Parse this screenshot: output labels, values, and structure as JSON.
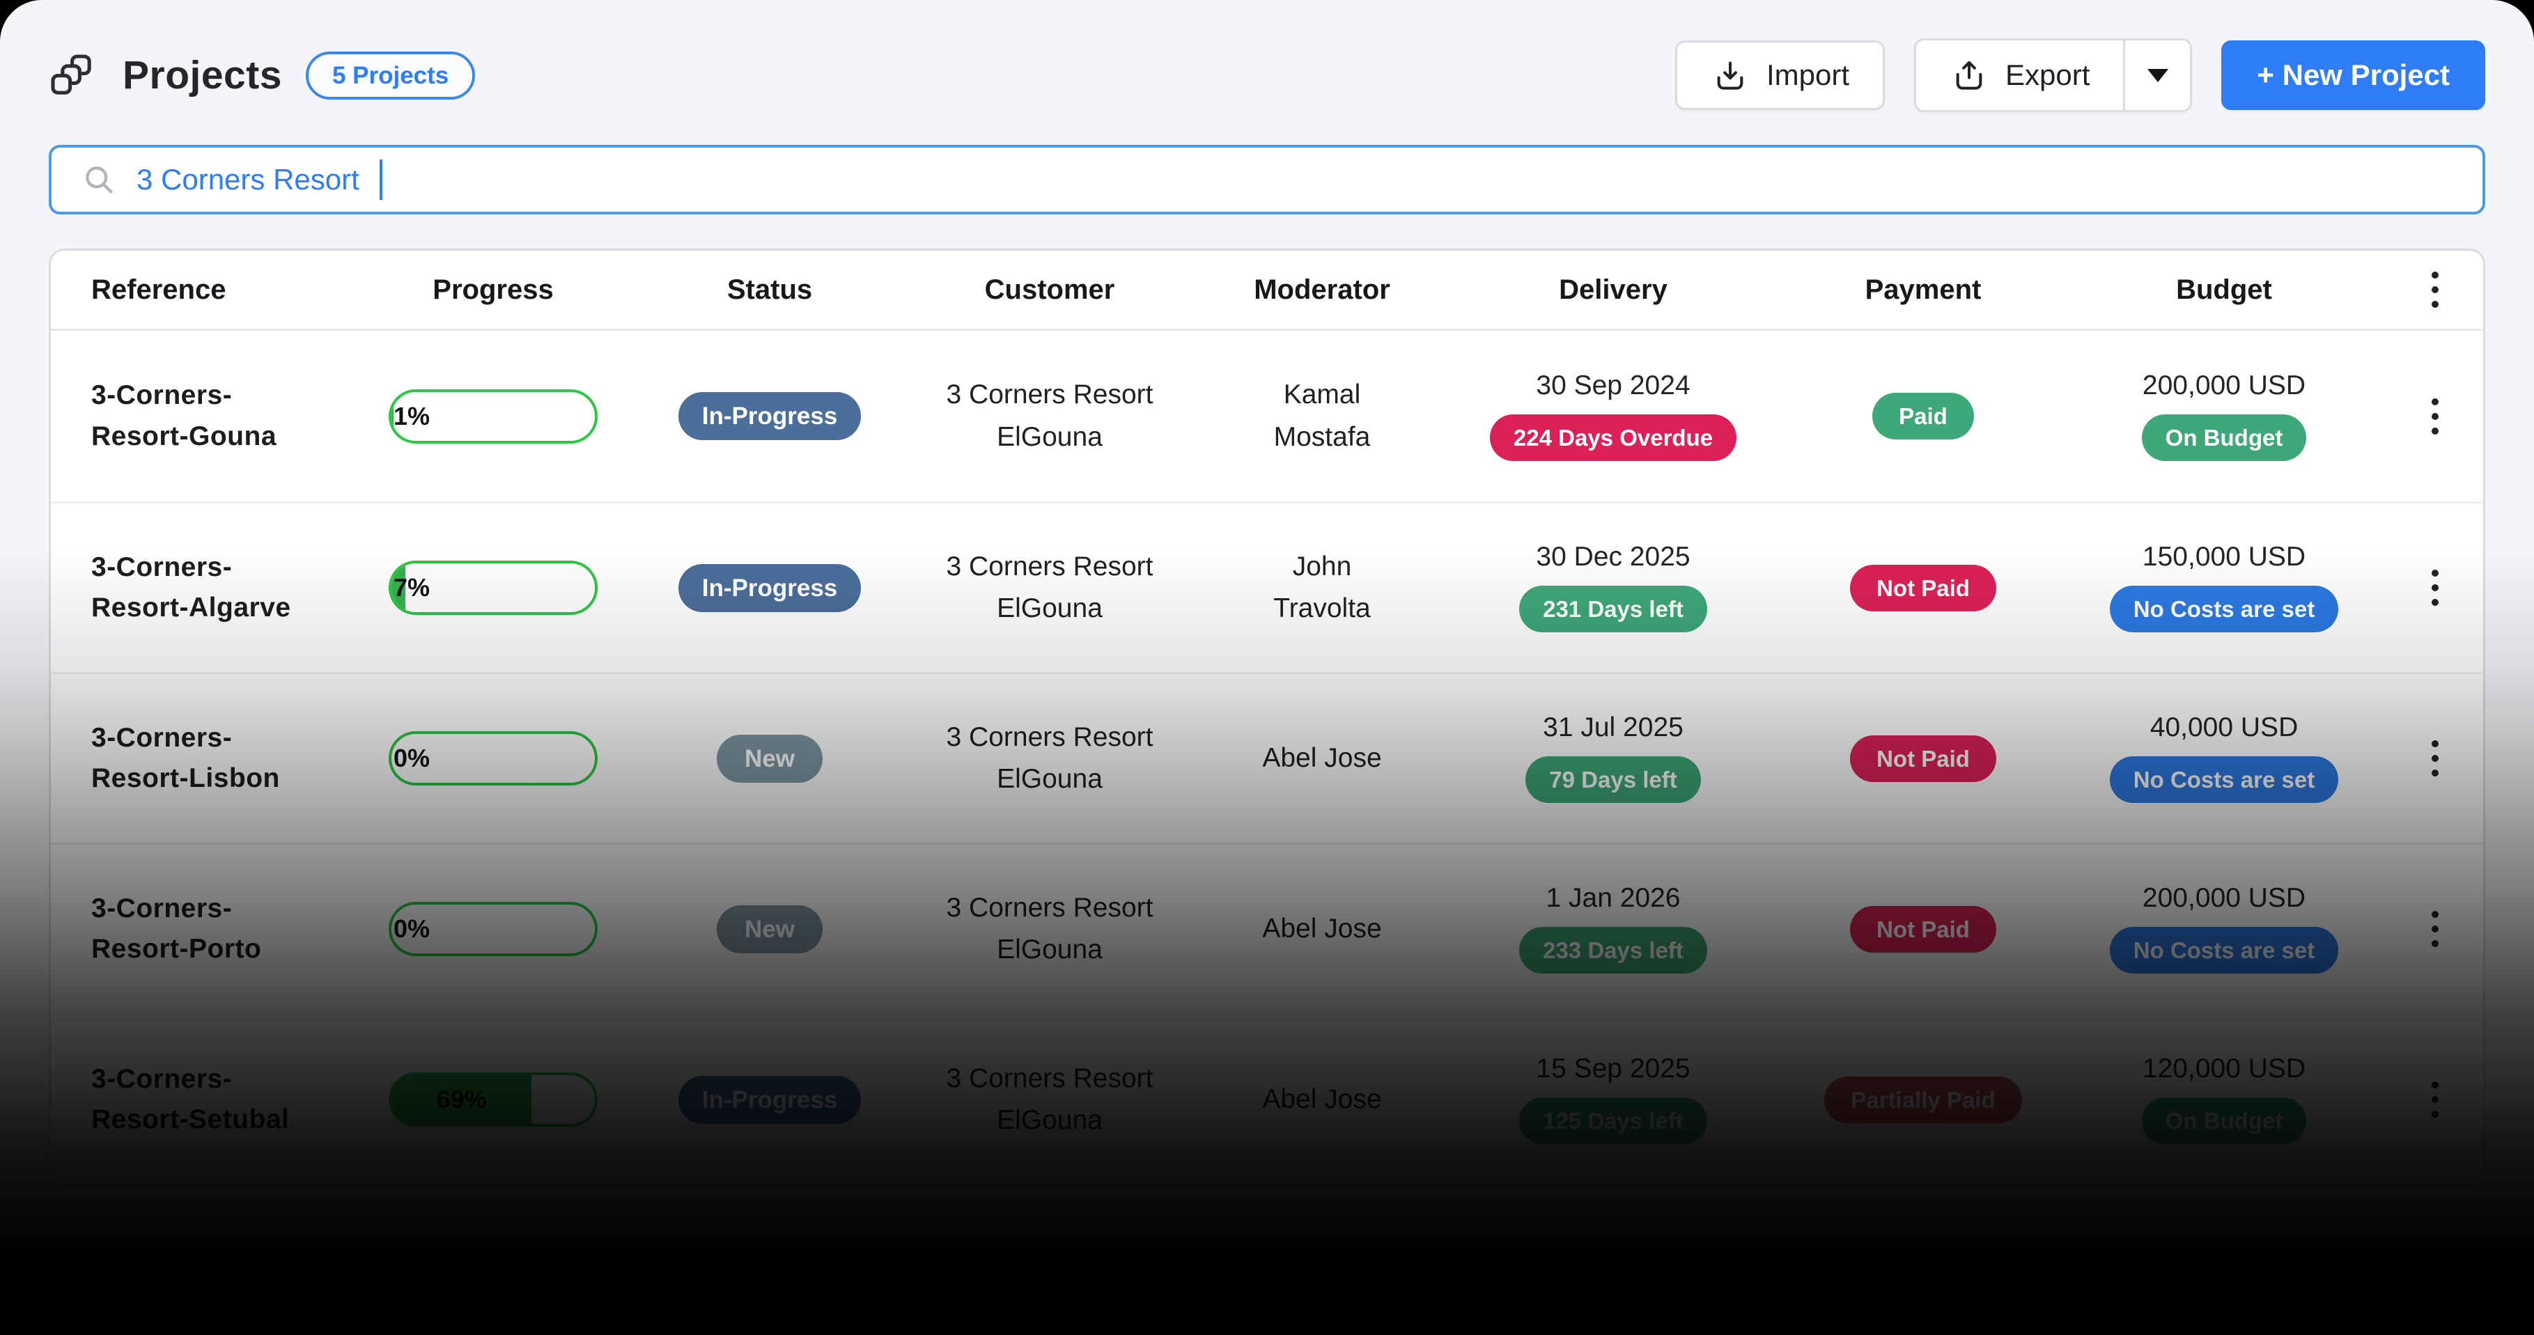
{
  "header": {
    "title": "Projects",
    "count_badge": "5 Projects",
    "import_label": "Import",
    "export_label": "Export",
    "new_project_label": "+ New Project"
  },
  "search": {
    "value": "3 Corners Resort"
  },
  "table": {
    "columns": [
      "Reference",
      "Progress",
      "Status",
      "Customer",
      "Moderator",
      "Delivery",
      "Payment",
      "Budget"
    ],
    "rows": [
      {
        "reference": "3-Corners-Resort-Gouna",
        "progress_pct": 1,
        "progress_label": "1%",
        "status": "In-Progress",
        "status_type": "inprogress",
        "customer": "3 Corners Resort ElGouna",
        "moderator": "Kamal Mostafa",
        "delivery_date": "30 Sep 2024",
        "delivery_badge": "224 Days Overdue",
        "delivery_badge_type": "overdue",
        "payment": "Paid",
        "payment_type": "paid",
        "budget": "200,000 USD",
        "budget_badge": "On Budget",
        "budget_badge_type": "on-budget"
      },
      {
        "reference": "3-Corners-Resort-Algarve",
        "progress_pct": 7,
        "progress_label": "7%",
        "status": "In-Progress",
        "status_type": "inprogress",
        "customer": "3 Corners Resort ElGouna",
        "moderator": "John Travolta",
        "delivery_date": "30 Dec 2025",
        "delivery_badge": "231 Days left",
        "delivery_badge_type": "days-left",
        "payment": "Not Paid",
        "payment_type": "not-paid",
        "budget": "150,000 USD",
        "budget_badge": "No Costs are set",
        "budget_badge_type": "no-costs"
      },
      {
        "reference": "3-Corners-Resort-Lisbon",
        "progress_pct": 0,
        "progress_label": "0%",
        "status": "New",
        "status_type": "new",
        "customer": "3 Corners Resort ElGouna",
        "moderator": "Abel Jose",
        "delivery_date": "31 Jul 2025",
        "delivery_badge": "79 Days left",
        "delivery_badge_type": "days-left",
        "payment": "Not Paid",
        "payment_type": "not-paid",
        "budget": "40,000 USD",
        "budget_badge": "No Costs are set",
        "budget_badge_type": "no-costs"
      },
      {
        "reference": "3-Corners-Resort-Porto",
        "progress_pct": 0,
        "progress_label": "0%",
        "status": "New",
        "status_type": "new",
        "customer": "3 Corners Resort ElGouna",
        "moderator": "Abel Jose",
        "delivery_date": "1 Jan 2026",
        "delivery_badge": "233 Days left",
        "delivery_badge_type": "days-left",
        "payment": "Not Paid",
        "payment_type": "not-paid",
        "budget": "200,000 USD",
        "budget_badge": "No Costs are set",
        "budget_badge_type": "no-costs"
      },
      {
        "reference": "3-Corners-Resort-Setubal",
        "progress_pct": 69,
        "progress_label": "69%",
        "status": "In-Progress",
        "status_type": "inprogress",
        "customer": "3 Corners Resort ElGouna",
        "moderator": "Abel Jose",
        "delivery_date": "15 Sep 2025",
        "delivery_badge": "125 Days left",
        "delivery_badge_type": "days-left",
        "payment": "Partially Paid",
        "payment_type": "partially-paid",
        "budget": "120,000 USD",
        "budget_badge": "On Budget",
        "budget_badge_type": "on-budget"
      }
    ]
  },
  "colors": {
    "accent": "#2E7CF6",
    "search_border": "#4E9AE6",
    "badge_border": "#3C86F0",
    "green": "#3EA878",
    "crimson": "#DC2158",
    "blue_badge": "#2D79E3",
    "inprogress": "#4B6E9B",
    "new_status": "#7E98A4",
    "partially_paid": "#C9555C",
    "progress_border": "#2BC843",
    "progress_fill": "#35B24E"
  }
}
